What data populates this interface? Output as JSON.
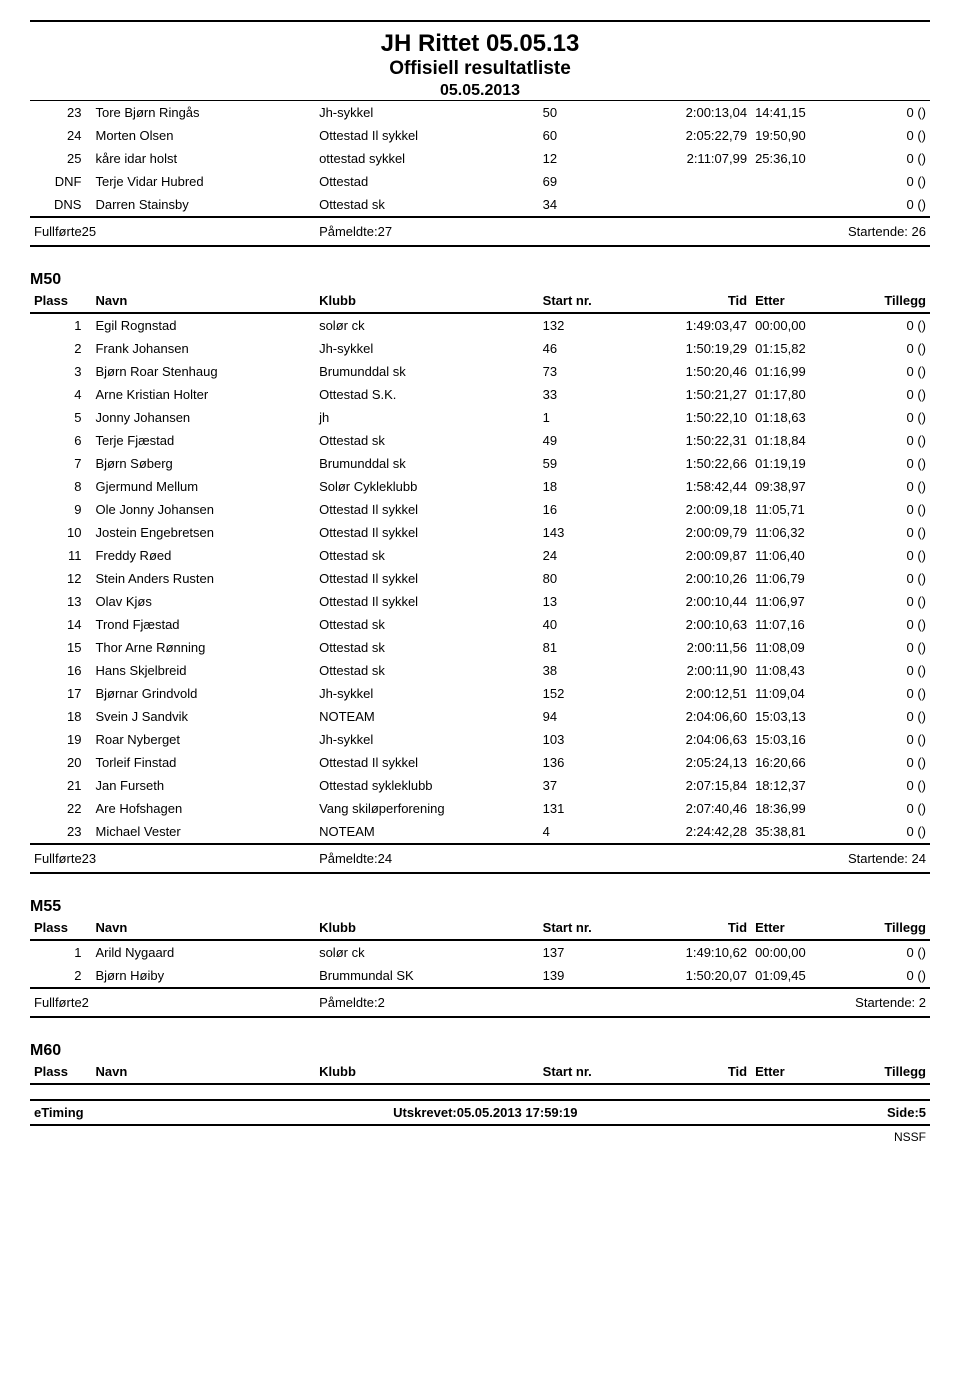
{
  "header": {
    "title": "JH Rittet 05.05.13",
    "subtitle": "Offisiell resultatliste",
    "date": "05.05.2013"
  },
  "columns": {
    "plass": "Plass",
    "navn": "Navn",
    "klubb": "Klubb",
    "startnr": "Start nr.",
    "tid": "Tid",
    "etter": "Etter",
    "tillegg": "Tillegg"
  },
  "continuation": {
    "rows": [
      {
        "plass": "23",
        "navn": "Tore Bjørn Ringås",
        "klubb": "Jh-sykkel",
        "start": "50",
        "tid": "2:00:13,04",
        "etter": "14:41,15",
        "tillegg": "0 ()"
      },
      {
        "plass": "24",
        "navn": "Morten Olsen",
        "klubb": "Ottestad Il sykkel",
        "start": "60",
        "tid": "2:05:22,79",
        "etter": "19:50,90",
        "tillegg": "0 ()"
      },
      {
        "plass": "25",
        "navn": "kåre idar holst",
        "klubb": "ottestad sykkel",
        "start": "12",
        "tid": "2:11:07,99",
        "etter": "25:36,10",
        "tillegg": "0 ()"
      },
      {
        "plass": "DNF",
        "navn": "Terje Vidar Hubred",
        "klubb": "Ottestad",
        "start": "69",
        "tid": "",
        "etter": "",
        "tillegg": "0 ()"
      },
      {
        "plass": "DNS",
        "navn": "Darren Stainsby",
        "klubb": "Ottestad sk",
        "start": "34",
        "tid": "",
        "etter": "",
        "tillegg": "0 ()"
      }
    ],
    "summary": {
      "full": "Fullførte25",
      "pam": "Påmeldte:27",
      "start": "Startende: 26"
    }
  },
  "m50": {
    "label": "M50",
    "rows": [
      {
        "plass": "1",
        "navn": "Egil Rognstad",
        "klubb": "solør ck",
        "start": "132",
        "tid": "1:49:03,47",
        "etter": "00:00,00",
        "tillegg": "0 ()"
      },
      {
        "plass": "2",
        "navn": "Frank Johansen",
        "klubb": "Jh-sykkel",
        "start": "46",
        "tid": "1:50:19,29",
        "etter": "01:15,82",
        "tillegg": "0 ()"
      },
      {
        "plass": "3",
        "navn": "Bjørn Roar Stenhaug",
        "klubb": "Brumunddal sk",
        "start": "73",
        "tid": "1:50:20,46",
        "etter": "01:16,99",
        "tillegg": "0 ()"
      },
      {
        "plass": "4",
        "navn": "Arne Kristian Holter",
        "klubb": "Ottestad S.K.",
        "start": "33",
        "tid": "1:50:21,27",
        "etter": "01:17,80",
        "tillegg": "0 ()"
      },
      {
        "plass": "5",
        "navn": "Jonny Johansen",
        "klubb": "jh",
        "start": "1",
        "tid": "1:50:22,10",
        "etter": "01:18,63",
        "tillegg": "0 ()"
      },
      {
        "plass": "6",
        "navn": "Terje Fjæstad",
        "klubb": "Ottestad sk",
        "start": "49",
        "tid": "1:50:22,31",
        "etter": "01:18,84",
        "tillegg": "0 ()"
      },
      {
        "plass": "7",
        "navn": "Bjørn Søberg",
        "klubb": "Brumunddal sk",
        "start": "59",
        "tid": "1:50:22,66",
        "etter": "01:19,19",
        "tillegg": "0 ()"
      },
      {
        "plass": "8",
        "navn": "Gjermund Mellum",
        "klubb": "Solør Cykleklubb",
        "start": "18",
        "tid": "1:58:42,44",
        "etter": "09:38,97",
        "tillegg": "0 ()"
      },
      {
        "plass": "9",
        "navn": "Ole Jonny Johansen",
        "klubb": "Ottestad Il sykkel",
        "start": "16",
        "tid": "2:00:09,18",
        "etter": "11:05,71",
        "tillegg": "0 ()"
      },
      {
        "plass": "10",
        "navn": "Jostein Engebretsen",
        "klubb": "Ottestad Il sykkel",
        "start": "143",
        "tid": "2:00:09,79",
        "etter": "11:06,32",
        "tillegg": "0 ()"
      },
      {
        "plass": "11",
        "navn": "Freddy Røed",
        "klubb": "Ottestad sk",
        "start": "24",
        "tid": "2:00:09,87",
        "etter": "11:06,40",
        "tillegg": "0 ()"
      },
      {
        "plass": "12",
        "navn": "Stein Anders Rusten",
        "klubb": "Ottestad Il sykkel",
        "start": "80",
        "tid": "2:00:10,26",
        "etter": "11:06,79",
        "tillegg": "0 ()"
      },
      {
        "plass": "13",
        "navn": "Olav Kjøs",
        "klubb": "Ottestad Il sykkel",
        "start": "13",
        "tid": "2:00:10,44",
        "etter": "11:06,97",
        "tillegg": "0 ()"
      },
      {
        "plass": "14",
        "navn": "Trond Fjæstad",
        "klubb": "Ottestad sk",
        "start": "40",
        "tid": "2:00:10,63",
        "etter": "11:07,16",
        "tillegg": "0 ()"
      },
      {
        "plass": "15",
        "navn": "Thor Arne Rønning",
        "klubb": "Ottestad sk",
        "start": "81",
        "tid": "2:00:11,56",
        "etter": "11:08,09",
        "tillegg": "0 ()"
      },
      {
        "plass": "16",
        "navn": "Hans Skjelbreid",
        "klubb": "Ottestad sk",
        "start": "38",
        "tid": "2:00:11,90",
        "etter": "11:08,43",
        "tillegg": "0 ()"
      },
      {
        "plass": "17",
        "navn": "Bjørnar Grindvold",
        "klubb": "Jh-sykkel",
        "start": "152",
        "tid": "2:00:12,51",
        "etter": "11:09,04",
        "tillegg": "0 ()"
      },
      {
        "plass": "18",
        "navn": "Svein J Sandvik",
        "klubb": "NOTEAM",
        "start": "94",
        "tid": "2:04:06,60",
        "etter": "15:03,13",
        "tillegg": "0 ()"
      },
      {
        "plass": "19",
        "navn": "Roar Nyberget",
        "klubb": "Jh-sykkel",
        "start": "103",
        "tid": "2:04:06,63",
        "etter": "15:03,16",
        "tillegg": "0 ()"
      },
      {
        "plass": "20",
        "navn": "Torleif Finstad",
        "klubb": "Ottestad Il sykkel",
        "start": "136",
        "tid": "2:05:24,13",
        "etter": "16:20,66",
        "tillegg": "0 ()"
      },
      {
        "plass": "21",
        "navn": "Jan Furseth",
        "klubb": "Ottestad sykleklubb",
        "start": "37",
        "tid": "2:07:15,84",
        "etter": "18:12,37",
        "tillegg": "0 ()"
      },
      {
        "plass": "22",
        "navn": "Are Hofshagen",
        "klubb": "Vang skiløperforening",
        "start": "131",
        "tid": "2:07:40,46",
        "etter": "18:36,99",
        "tillegg": "0 ()"
      },
      {
        "plass": "23",
        "navn": "Michael Vester",
        "klubb": "NOTEAM",
        "start": "4",
        "tid": "2:24:42,28",
        "etter": "35:38,81",
        "tillegg": "0 ()"
      }
    ],
    "summary": {
      "full": "Fullførte23",
      "pam": "Påmeldte:24",
      "start": "Startende: 24"
    }
  },
  "m55": {
    "label": "M55",
    "rows": [
      {
        "plass": "1",
        "navn": "Arild Nygaard",
        "klubb": "solør ck",
        "start": "137",
        "tid": "1:49:10,62",
        "etter": "00:00,00",
        "tillegg": "0 ()"
      },
      {
        "plass": "2",
        "navn": "Bjørn Høiby",
        "klubb": "Brummundal SK",
        "start": "139",
        "tid": "1:50:20,07",
        "etter": "01:09,45",
        "tillegg": "0 ()"
      }
    ],
    "summary": {
      "full": "Fullførte2",
      "pam": "Påmeldte:2",
      "start": "Startende: 2"
    }
  },
  "m60": {
    "label": "M60"
  },
  "footer": {
    "left": "eTiming",
    "center": "Utskrevet:05.05.2013 17:59:19",
    "right": "Side:5",
    "org": "NSSF"
  }
}
